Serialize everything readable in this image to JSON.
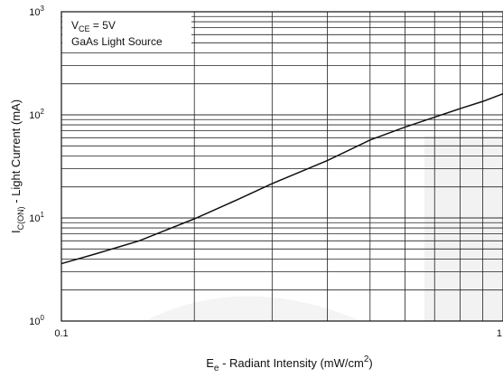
{
  "chart_data": {
    "type": "line",
    "xscale": "log",
    "yscale": "log",
    "xlim": [
      0.1,
      1
    ],
    "ylim": [
      1,
      1000
    ],
    "grid": true,
    "xlabel_main": "E",
    "xlabel_sub": "e",
    "xlabel_rest": " - Radiant Intensity (mW/cm",
    "xlabel_sup": "2",
    "xlabel_end": ")",
    "ylabel_main": "I",
    "ylabel_sub": "C(ON)",
    "ylabel_rest": "  - Light Current (mA)",
    "x_ticks": [
      {
        "value": 0.1,
        "label": "0.1"
      },
      {
        "value": 1,
        "label": "1"
      }
    ],
    "y_ticks": [
      {
        "value": 1,
        "base": "10",
        "exp": "0"
      },
      {
        "value": 10,
        "base": "10",
        "exp": "1"
      },
      {
        "value": 100,
        "base": "10",
        "exp": "2"
      },
      {
        "value": 1000,
        "base": "10",
        "exp": "3"
      }
    ],
    "annotations": {
      "line1_main": "V",
      "line1_sub": "CE",
      "line1_rest": " = 5V",
      "line2": "GaAs Light Source"
    },
    "series": [
      {
        "x": [
          0.1,
          0.12,
          0.15,
          0.2,
          0.25,
          0.3,
          0.4,
          0.5,
          0.6,
          0.7,
          0.8,
          0.9,
          1.0
        ],
        "y": [
          3.6,
          4.5,
          6.0,
          9.8,
          15.0,
          21.5,
          36.0,
          57.0,
          76.0,
          95.0,
          115.0,
          135.0,
          160.0
        ]
      }
    ]
  }
}
